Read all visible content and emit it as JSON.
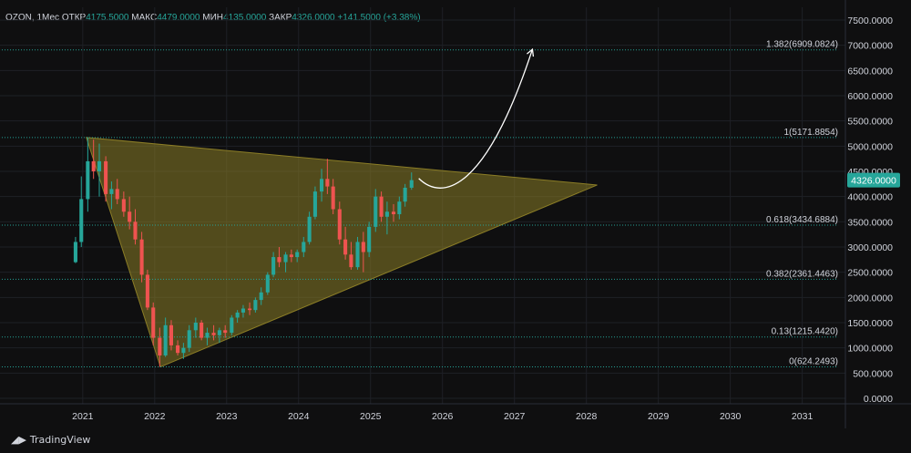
{
  "header": {
    "symbol": "OZON",
    "interval": "1Мес",
    "open_label": "ОТКР",
    "open_value": "4175.5000",
    "high_label": "МАКС",
    "high_value": "4479.0000",
    "low_label": "МИН",
    "low_value": "4135.0000",
    "close_label": "ЗАКР",
    "close_value": "4326.0000",
    "change": "+141.5000",
    "change_pct": "(+3.38%)"
  },
  "brand": {
    "name": "TradingView",
    "logo_icon": "tradingview-logo-icon"
  },
  "colors": {
    "background": "#0f0f10",
    "up": "#26a69a",
    "down": "#ef5350",
    "triangle_fill": "#8b7d26",
    "fib_line": "#26a69a",
    "price_badge": "#26a69a",
    "arrow": "#ffffff",
    "text": "#d1d4dc"
  },
  "chart_data": {
    "type": "candlestick",
    "title": "",
    "xlabel": "",
    "ylabel": "",
    "y_axis_side": "right",
    "ylim": [
      0,
      7500
    ],
    "yticks": [
      {
        "value": 7500,
        "label": "7500.0000"
      },
      {
        "value": 7000,
        "label": "7000.0000"
      },
      {
        "value": 6500,
        "label": "6500.0000"
      },
      {
        "value": 6000,
        "label": "6000.0000"
      },
      {
        "value": 5500,
        "label": "5500.0000"
      },
      {
        "value": 5000,
        "label": "5000.0000"
      },
      {
        "value": 4500,
        "label": "4500.0000"
      },
      {
        "value": 4000,
        "label": "4000.0000"
      },
      {
        "value": 3500,
        "label": "3500.0000"
      },
      {
        "value": 3000,
        "label": "3000.0000"
      },
      {
        "value": 2500,
        "label": "2500.0000"
      },
      {
        "value": 2000,
        "label": "2000.0000"
      },
      {
        "value": 1500,
        "label": "1500.0000"
      },
      {
        "value": 1000,
        "label": "1000.0000"
      },
      {
        "value": 500,
        "label": "500.0000"
      },
      {
        "value": 0,
        "label": "0.0000"
      }
    ],
    "xticks": [
      {
        "value": 2021,
        "label": "2021"
      },
      {
        "value": 2022,
        "label": "2022"
      },
      {
        "value": 2023,
        "label": "2023"
      },
      {
        "value": 2024,
        "label": "2024"
      },
      {
        "value": 2025,
        "label": "2025"
      },
      {
        "value": 2026,
        "label": "2026"
      },
      {
        "value": 2027,
        "label": "2027"
      },
      {
        "value": 2028,
        "label": "2028"
      },
      {
        "value": 2029,
        "label": "2029"
      },
      {
        "value": 2030,
        "label": "2030"
      },
      {
        "value": 2031,
        "label": "2031"
      }
    ],
    "xlim": [
      2019.85,
      2031.6
    ],
    "grid": true,
    "current_price": {
      "value": 4326,
      "label": "4326.0000"
    },
    "fib_levels": [
      {
        "value": 6909.0824,
        "label": "1.382(6909.0824)"
      },
      {
        "value": 5171.8854,
        "label": "1(5171.8854)"
      },
      {
        "value": 3434.6884,
        "label": "0.618(3434.6884)"
      },
      {
        "value": 2361.4463,
        "label": "0.382(2361.4463)"
      },
      {
        "value": 1215.442,
        "label": "0.13(1215.4420)"
      },
      {
        "value": 624.2493,
        "label": "0(624.2493)"
      }
    ],
    "fib_x_range": [
      2019.8,
      2031.5
    ],
    "triangle": [
      [
        2021.05,
        5172
      ],
      [
        2022.08,
        624
      ],
      [
        2028.15,
        4230
      ]
    ],
    "projection_arrow": {
      "start": [
        2025.67,
        4360
      ],
      "control1": [
        2026.0,
        3900
      ],
      "control2": [
        2026.6,
        4100
      ],
      "end": [
        2027.25,
        6920
      ]
    },
    "candles": [
      {
        "t": 2020.9,
        "o": 2700,
        "h": 3200,
        "l": 2680,
        "c": 3100
      },
      {
        "t": 2020.98,
        "o": 3100,
        "h": 4400,
        "l": 3000,
        "c": 3950
      },
      {
        "t": 2021.07,
        "o": 3950,
        "h": 5172,
        "l": 3700,
        "c": 4700
      },
      {
        "t": 2021.15,
        "o": 4700,
        "h": 5130,
        "l": 4350,
        "c": 4500
      },
      {
        "t": 2021.23,
        "o": 4500,
        "h": 5050,
        "l": 4000,
        "c": 4700
      },
      {
        "t": 2021.32,
        "o": 4700,
        "h": 4800,
        "l": 3900,
        "c": 4050
      },
      {
        "t": 2021.4,
        "o": 4050,
        "h": 4300,
        "l": 3750,
        "c": 4150
      },
      {
        "t": 2021.48,
        "o": 4150,
        "h": 4350,
        "l": 3850,
        "c": 3950
      },
      {
        "t": 2021.57,
        "o": 3950,
        "h": 4100,
        "l": 3600,
        "c": 3700
      },
      {
        "t": 2021.65,
        "o": 3700,
        "h": 4000,
        "l": 3350,
        "c": 3500
      },
      {
        "t": 2021.73,
        "o": 3500,
        "h": 3750,
        "l": 3050,
        "c": 3150
      },
      {
        "t": 2021.82,
        "o": 3150,
        "h": 3300,
        "l": 2300,
        "c": 2450
      },
      {
        "t": 2021.9,
        "o": 2450,
        "h": 2550,
        "l": 1750,
        "c": 1800
      },
      {
        "t": 2021.98,
        "o": 1800,
        "h": 1900,
        "l": 1050,
        "c": 1200
      },
      {
        "t": 2022.07,
        "o": 1200,
        "h": 1400,
        "l": 624,
        "c": 850
      },
      {
        "t": 2022.15,
        "o": 850,
        "h": 1600,
        "l": 820,
        "c": 1450
      },
      {
        "t": 2022.23,
        "o": 1450,
        "h": 1550,
        "l": 950,
        "c": 1050
      },
      {
        "t": 2022.32,
        "o": 1050,
        "h": 1150,
        "l": 850,
        "c": 900
      },
      {
        "t": 2022.4,
        "o": 900,
        "h": 1100,
        "l": 780,
        "c": 1000
      },
      {
        "t": 2022.48,
        "o": 1000,
        "h": 1450,
        "l": 920,
        "c": 1350
      },
      {
        "t": 2022.57,
        "o": 1350,
        "h": 1600,
        "l": 1200,
        "c": 1500
      },
      {
        "t": 2022.65,
        "o": 1500,
        "h": 1550,
        "l": 1150,
        "c": 1200
      },
      {
        "t": 2022.73,
        "o": 1200,
        "h": 1400,
        "l": 1050,
        "c": 1300
      },
      {
        "t": 2022.82,
        "o": 1300,
        "h": 1450,
        "l": 1150,
        "c": 1250
      },
      {
        "t": 2022.9,
        "o": 1250,
        "h": 1400,
        "l": 1100,
        "c": 1350
      },
      {
        "t": 2022.98,
        "o": 1350,
        "h": 1450,
        "l": 1200,
        "c": 1300
      },
      {
        "t": 2023.07,
        "o": 1300,
        "h": 1650,
        "l": 1250,
        "c": 1600
      },
      {
        "t": 2023.15,
        "o": 1600,
        "h": 1750,
        "l": 1500,
        "c": 1700
      },
      {
        "t": 2023.23,
        "o": 1700,
        "h": 1850,
        "l": 1600,
        "c": 1780
      },
      {
        "t": 2023.32,
        "o": 1780,
        "h": 1900,
        "l": 1650,
        "c": 1750
      },
      {
        "t": 2023.4,
        "o": 1750,
        "h": 2000,
        "l": 1700,
        "c": 1950
      },
      {
        "t": 2023.48,
        "o": 1950,
        "h": 2200,
        "l": 1850,
        "c": 2100
      },
      {
        "t": 2023.57,
        "o": 2100,
        "h": 2500,
        "l": 2050,
        "c": 2450
      },
      {
        "t": 2023.65,
        "o": 2450,
        "h": 2900,
        "l": 2400,
        "c": 2800
      },
      {
        "t": 2023.73,
        "o": 2800,
        "h": 3000,
        "l": 2600,
        "c": 2700
      },
      {
        "t": 2023.82,
        "o": 2700,
        "h": 2900,
        "l": 2500,
        "c": 2850
      },
      {
        "t": 2023.9,
        "o": 2850,
        "h": 2950,
        "l": 2700,
        "c": 2800
      },
      {
        "t": 2023.98,
        "o": 2800,
        "h": 2950,
        "l": 2700,
        "c": 2900
      },
      {
        "t": 2024.07,
        "o": 2900,
        "h": 3200,
        "l": 2800,
        "c": 3100
      },
      {
        "t": 2024.15,
        "o": 3100,
        "h": 3700,
        "l": 3050,
        "c": 3600
      },
      {
        "t": 2024.23,
        "o": 3600,
        "h": 4200,
        "l": 3550,
        "c": 4100
      },
      {
        "t": 2024.32,
        "o": 4100,
        "h": 4550,
        "l": 3900,
        "c": 4350
      },
      {
        "t": 2024.4,
        "o": 4350,
        "h": 4750,
        "l": 4050,
        "c": 4200
      },
      {
        "t": 2024.48,
        "o": 4200,
        "h": 4350,
        "l": 3650,
        "c": 3750
      },
      {
        "t": 2024.57,
        "o": 3750,
        "h": 3900,
        "l": 3050,
        "c": 3150
      },
      {
        "t": 2024.65,
        "o": 3150,
        "h": 3400,
        "l": 2750,
        "c": 2850
      },
      {
        "t": 2024.73,
        "o": 2850,
        "h": 3100,
        "l": 2550,
        "c": 2600
      },
      {
        "t": 2024.82,
        "o": 2600,
        "h": 3200,
        "l": 2550,
        "c": 3100
      },
      {
        "t": 2024.9,
        "o": 3100,
        "h": 3300,
        "l": 2500,
        "c": 2900
      },
      {
        "t": 2024.98,
        "o": 2900,
        "h": 3500,
        "l": 2800,
        "c": 3400
      },
      {
        "t": 2025.07,
        "o": 3400,
        "h": 4150,
        "l": 3300,
        "c": 4000
      },
      {
        "t": 2025.15,
        "o": 4000,
        "h": 4100,
        "l": 3500,
        "c": 3600
      },
      {
        "t": 2025.23,
        "o": 3600,
        "h": 3900,
        "l": 3250,
        "c": 3700
      },
      {
        "t": 2025.32,
        "o": 3700,
        "h": 3850,
        "l": 3500,
        "c": 3650
      },
      {
        "t": 2025.4,
        "o": 3650,
        "h": 4000,
        "l": 3550,
        "c": 3900
      },
      {
        "t": 2025.48,
        "o": 3900,
        "h": 4250,
        "l": 3800,
        "c": 4175
      },
      {
        "t": 2025.57,
        "o": 4175,
        "h": 4479,
        "l": 4135,
        "c": 4326
      }
    ]
  }
}
